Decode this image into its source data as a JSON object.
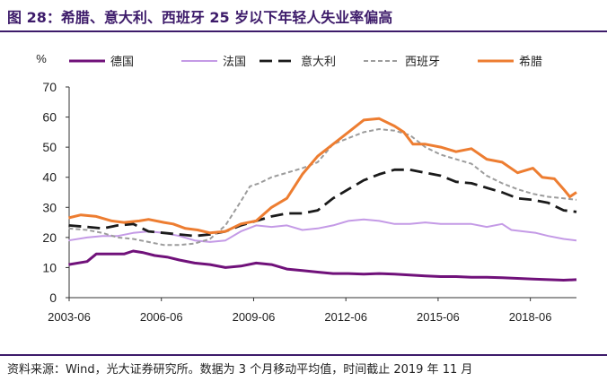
{
  "header": {
    "title": "图 28：希腊、意大利、西班牙 25 岁以下年轻人失业率偏高"
  },
  "footer": {
    "source": "资料来源：Wind，光大证券研究所。数据为 3 个月移动平均值，时间截止 2019 年 11 月"
  },
  "chart_data": {
    "type": "line",
    "title": "图 28：希腊、意大利、西班牙 25 岁以下年轻人失业率偏高",
    "ylabel": "%",
    "xlabel": "",
    "ylim": [
      0,
      70
    ],
    "yticks": [
      0,
      10,
      20,
      30,
      40,
      50,
      60,
      70
    ],
    "xlim": [
      2003.417,
      2019.917
    ],
    "xticks": [
      {
        "x": 2003.417,
        "label": "2003-06"
      },
      {
        "x": 2006.417,
        "label": "2006-06"
      },
      {
        "x": 2009.417,
        "label": "2009-06"
      },
      {
        "x": 2012.417,
        "label": "2012-06"
      },
      {
        "x": 2015.417,
        "label": "2015-06"
      },
      {
        "x": 2018.417,
        "label": "2018-06"
      }
    ],
    "grid": false,
    "legend_position": "top",
    "series": [
      {
        "name": "德国",
        "color": "#70117a",
        "dash": "solid",
        "width": 3,
        "points": [
          [
            2003.4,
            11
          ],
          [
            2004.0,
            12
          ],
          [
            2004.3,
            14.5
          ],
          [
            2004.8,
            14.5
          ],
          [
            2005.2,
            14.5
          ],
          [
            2005.5,
            15.5
          ],
          [
            2005.8,
            15
          ],
          [
            2006.2,
            14
          ],
          [
            2006.6,
            13.5
          ],
          [
            2007.0,
            12.5
          ],
          [
            2007.5,
            11.5
          ],
          [
            2008.0,
            11
          ],
          [
            2008.5,
            10
          ],
          [
            2009.0,
            10.5
          ],
          [
            2009.5,
            11.5
          ],
          [
            2010.0,
            11
          ],
          [
            2010.5,
            9.5
          ],
          [
            2011.0,
            9
          ],
          [
            2011.5,
            8.5
          ],
          [
            2012.0,
            8
          ],
          [
            2012.5,
            8
          ],
          [
            2013.0,
            7.8
          ],
          [
            2013.5,
            8
          ],
          [
            2014.0,
            7.8
          ],
          [
            2014.5,
            7.5
          ],
          [
            2015.0,
            7.2
          ],
          [
            2015.5,
            7
          ],
          [
            2016.0,
            7
          ],
          [
            2016.5,
            6.8
          ],
          [
            2017.0,
            6.8
          ],
          [
            2017.5,
            6.6
          ],
          [
            2018.0,
            6.4
          ],
          [
            2018.5,
            6.2
          ],
          [
            2019.0,
            6
          ],
          [
            2019.5,
            5.8
          ],
          [
            2019.917,
            6
          ]
        ]
      },
      {
        "name": "法国",
        "color": "#c49ae6",
        "dash": "solid",
        "width": 2,
        "points": [
          [
            2003.4,
            19
          ],
          [
            2004.0,
            20
          ],
          [
            2004.5,
            20.5
          ],
          [
            2005.0,
            20.5
          ],
          [
            2005.5,
            21.5
          ],
          [
            2006.0,
            22
          ],
          [
            2006.5,
            21.5
          ],
          [
            2007.0,
            20.5
          ],
          [
            2007.5,
            19
          ],
          [
            2008.0,
            18.5
          ],
          [
            2008.5,
            19
          ],
          [
            2009.0,
            22
          ],
          [
            2009.5,
            24
          ],
          [
            2010.0,
            23.5
          ],
          [
            2010.5,
            24
          ],
          [
            2011.0,
            22.5
          ],
          [
            2011.5,
            23
          ],
          [
            2012.0,
            24
          ],
          [
            2012.5,
            25.5
          ],
          [
            2013.0,
            26
          ],
          [
            2013.5,
            25.5
          ],
          [
            2014.0,
            24.5
          ],
          [
            2014.5,
            24.5
          ],
          [
            2015.0,
            25
          ],
          [
            2015.5,
            24.5
          ],
          [
            2016.0,
            24.5
          ],
          [
            2016.5,
            24.5
          ],
          [
            2017.0,
            23.5
          ],
          [
            2017.5,
            24.5
          ],
          [
            2017.8,
            22.5
          ],
          [
            2018.2,
            22
          ],
          [
            2018.6,
            21.5
          ],
          [
            2019.0,
            20.5
          ],
          [
            2019.5,
            19.5
          ],
          [
            2019.917,
            19
          ]
        ]
      },
      {
        "name": "意大利",
        "color": "#1a1a1a",
        "dash": "long",
        "width": 2.8,
        "points": [
          [
            2003.4,
            24
          ],
          [
            2004.0,
            23.5
          ],
          [
            2004.5,
            23
          ],
          [
            2005.0,
            24
          ],
          [
            2005.5,
            24.5
          ],
          [
            2006.0,
            22
          ],
          [
            2006.5,
            21.5
          ],
          [
            2007.0,
            21
          ],
          [
            2007.5,
            20.5
          ],
          [
            2008.0,
            21
          ],
          [
            2008.5,
            22
          ],
          [
            2009.0,
            24
          ],
          [
            2009.5,
            25.5
          ],
          [
            2010.0,
            27
          ],
          [
            2010.5,
            28
          ],
          [
            2011.0,
            28
          ],
          [
            2011.5,
            29
          ],
          [
            2012.0,
            33
          ],
          [
            2012.5,
            36
          ],
          [
            2013.0,
            39
          ],
          [
            2013.5,
            41
          ],
          [
            2014.0,
            42.5
          ],
          [
            2014.5,
            42.5
          ],
          [
            2015.0,
            41.5
          ],
          [
            2015.5,
            40.5
          ],
          [
            2016.0,
            38.5
          ],
          [
            2016.5,
            38
          ],
          [
            2017.0,
            36.5
          ],
          [
            2017.5,
            35
          ],
          [
            2018.0,
            33
          ],
          [
            2018.5,
            32.5
          ],
          [
            2019.0,
            31.5
          ],
          [
            2019.5,
            29
          ],
          [
            2019.917,
            28.5
          ]
        ]
      },
      {
        "name": "西班牙",
        "color": "#9c9c9c",
        "dash": "short",
        "width": 2,
        "points": [
          [
            2003.4,
            23
          ],
          [
            2004.0,
            22.5
          ],
          [
            2004.5,
            21.5
          ],
          [
            2005.0,
            20
          ],
          [
            2005.5,
            19.5
          ],
          [
            2006.0,
            18.5
          ],
          [
            2006.5,
            17.5
          ],
          [
            2007.0,
            17.5
          ],
          [
            2007.5,
            18
          ],
          [
            2008.0,
            19.5
          ],
          [
            2008.5,
            24
          ],
          [
            2009.0,
            32
          ],
          [
            2009.3,
            37
          ],
          [
            2009.6,
            38
          ],
          [
            2010.0,
            40
          ],
          [
            2010.5,
            41.5
          ],
          [
            2011.0,
            43
          ],
          [
            2011.5,
            45
          ],
          [
            2012.0,
            51
          ],
          [
            2012.5,
            53
          ],
          [
            2013.0,
            55
          ],
          [
            2013.5,
            56
          ],
          [
            2014.0,
            55.5
          ],
          [
            2014.5,
            54
          ],
          [
            2015.0,
            50
          ],
          [
            2015.5,
            47.5
          ],
          [
            2016.0,
            46
          ],
          [
            2016.5,
            44.5
          ],
          [
            2017.0,
            40.5
          ],
          [
            2017.5,
            38
          ],
          [
            2018.0,
            36
          ],
          [
            2018.5,
            34.5
          ],
          [
            2019.0,
            33.5
          ],
          [
            2019.5,
            33
          ],
          [
            2019.917,
            32.5
          ]
        ]
      },
      {
        "name": "希腊",
        "color": "#ed7d31",
        "dash": "solid",
        "width": 3,
        "points": [
          [
            2003.4,
            26.5
          ],
          [
            2003.8,
            27.5
          ],
          [
            2004.3,
            27
          ],
          [
            2004.8,
            25.5
          ],
          [
            2005.2,
            25
          ],
          [
            2005.7,
            25.5
          ],
          [
            2006.0,
            26
          ],
          [
            2006.5,
            25
          ],
          [
            2006.8,
            24.5
          ],
          [
            2007.2,
            23
          ],
          [
            2007.6,
            22.5
          ],
          [
            2008.0,
            21.5
          ],
          [
            2008.5,
            22
          ],
          [
            2009.0,
            24.5
          ],
          [
            2009.5,
            25.5
          ],
          [
            2010.0,
            30
          ],
          [
            2010.5,
            33
          ],
          [
            2011.0,
            41
          ],
          [
            2011.5,
            47
          ],
          [
            2012.0,
            51
          ],
          [
            2012.5,
            55
          ],
          [
            2013.0,
            59
          ],
          [
            2013.5,
            59.5
          ],
          [
            2014.0,
            57
          ],
          [
            2014.3,
            55
          ],
          [
            2014.6,
            51
          ],
          [
            2015.0,
            51
          ],
          [
            2015.5,
            50
          ],
          [
            2016.0,
            48.5
          ],
          [
            2016.5,
            49.5
          ],
          [
            2017.0,
            46
          ],
          [
            2017.5,
            45
          ],
          [
            2018.0,
            41.5
          ],
          [
            2018.5,
            43
          ],
          [
            2018.8,
            40
          ],
          [
            2019.2,
            39.5
          ],
          [
            2019.5,
            36
          ],
          [
            2019.7,
            33.5
          ],
          [
            2019.917,
            35
          ]
        ]
      }
    ]
  }
}
